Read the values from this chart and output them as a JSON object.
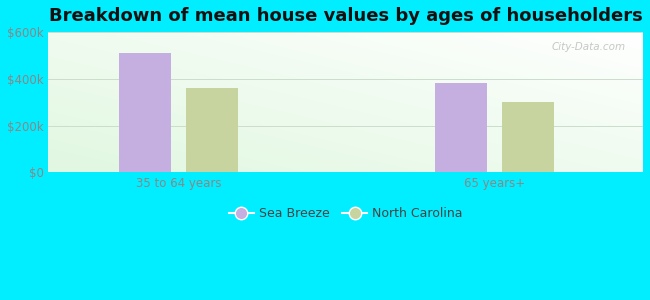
{
  "title": "Breakdown of mean house values by ages of householders",
  "categories": [
    "35 to 64 years",
    "65 years+"
  ],
  "series": {
    "Sea Breeze": [
      510000,
      380000
    ],
    "North Carolina": [
      360000,
      300000
    ]
  },
  "series_colors": {
    "Sea Breeze": "#c5aee0",
    "North Carolina": "#c8d4a0"
  },
  "ylim": [
    0,
    600000
  ],
  "yticks": [
    0,
    200000,
    400000,
    600000
  ],
  "ytick_labels": [
    "$0",
    "$200k",
    "$400k",
    "$600k"
  ],
  "background_color": "#00eeff",
  "bar_width": 0.28,
  "title_fontsize": 13,
  "tick_fontsize": 8.5,
  "legend_fontsize": 9,
  "watermark": "City-Data.com"
}
